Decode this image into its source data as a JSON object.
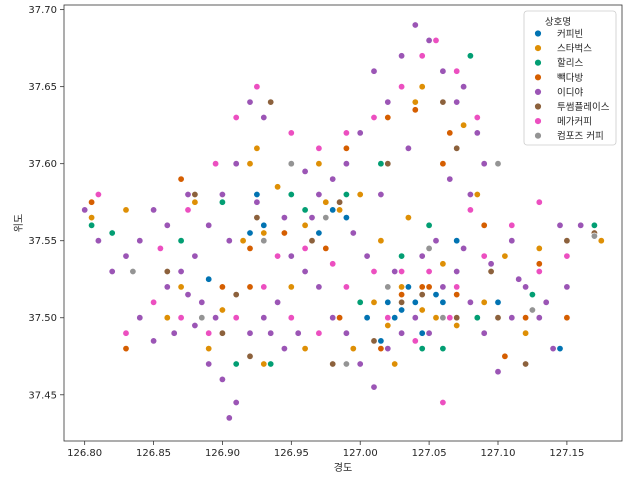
{
  "chart_data": {
    "type": "scatter",
    "xlabel": "경도",
    "ylabel": "위도",
    "xlim": [
      126.785,
      127.19
    ],
    "ylim": [
      37.42,
      37.703
    ],
    "xticks": [
      "126.80",
      "126.85",
      "126.90",
      "126.95",
      "127.00",
      "127.05",
      "127.10",
      "127.15"
    ],
    "yticks": [
      "37.45",
      "37.50",
      "37.55",
      "37.60",
      "37.65",
      "37.70"
    ],
    "grid": false,
    "legend": {
      "title": "상호명",
      "placement": "top-right"
    },
    "series": [
      {
        "name": "커피빈",
        "color": "#0173b2",
        "points": [
          [
            127.03,
            37.505
          ],
          [
            127.04,
            37.51
          ],
          [
            127.025,
            37.5
          ],
          [
            127.035,
            37.52
          ],
          [
            127.02,
            37.51
          ],
          [
            127.005,
            37.5
          ],
          [
            126.99,
            37.565
          ],
          [
            126.98,
            37.57
          ],
          [
            126.92,
            37.555
          ],
          [
            126.93,
            37.56
          ],
          [
            127.055,
            37.515
          ],
          [
            127.06,
            37.51
          ],
          [
            127.045,
            37.49
          ],
          [
            127.015,
            37.485
          ],
          [
            127.1,
            37.51
          ],
          [
            127.145,
            37.48
          ],
          [
            126.89,
            37.525
          ],
          [
            126.925,
            37.58
          ],
          [
            127.07,
            37.55
          ],
          [
            126.97,
            37.555
          ]
        ]
      },
      {
        "name": "스타벅스",
        "color": "#de8f05",
        "points": [
          [
            127.03,
            37.52
          ],
          [
            127.045,
            37.505
          ],
          [
            127.055,
            37.5
          ],
          [
            127.02,
            37.495
          ],
          [
            127.01,
            37.51
          ],
          [
            126.975,
            37.575
          ],
          [
            126.985,
            37.57
          ],
          [
            126.96,
            37.56
          ],
          [
            126.93,
            37.555
          ],
          [
            126.915,
            37.55
          ],
          [
            126.92,
            37.6
          ],
          [
            126.925,
            37.61
          ],
          [
            127.04,
            37.64
          ],
          [
            127.045,
            37.65
          ],
          [
            127.075,
            37.625
          ],
          [
            127.085,
            37.58
          ],
          [
            127.105,
            37.54
          ],
          [
            127.13,
            37.545
          ],
          [
            127.175,
            37.55
          ],
          [
            126.805,
            37.565
          ],
          [
            126.83,
            37.57
          ],
          [
            126.87,
            37.52
          ],
          [
            126.89,
            37.48
          ],
          [
            126.9,
            37.505
          ],
          [
            126.95,
            37.52
          ],
          [
            126.97,
            37.6
          ],
          [
            127.0,
            37.58
          ],
          [
            127.06,
            37.535
          ],
          [
            127.09,
            37.51
          ],
          [
            127.12,
            37.49
          ],
          [
            126.88,
            37.575
          ],
          [
            126.94,
            37.585
          ],
          [
            127.015,
            37.55
          ],
          [
            127.035,
            37.565
          ],
          [
            126.995,
            37.48
          ],
          [
            127.025,
            37.47
          ],
          [
            127.07,
            37.495
          ],
          [
            126.96,
            37.48
          ],
          [
            126.93,
            37.47
          ],
          [
            126.86,
            37.5
          ]
        ]
      },
      {
        "name": "할리스",
        "color": "#029e73",
        "points": [
          [
            127.08,
            37.67
          ],
          [
            126.805,
            37.56
          ],
          [
            126.82,
            37.555
          ],
          [
            127.17,
            37.56
          ],
          [
            127.045,
            37.48
          ],
          [
            126.98,
            37.5
          ],
          [
            126.95,
            37.58
          ],
          [
            126.96,
            37.57
          ],
          [
            126.935,
            37.47
          ],
          [
            126.91,
            37.47
          ],
          [
            127.05,
            37.56
          ],
          [
            127.03,
            37.54
          ],
          [
            127.06,
            37.48
          ],
          [
            126.9,
            37.575
          ],
          [
            127.0,
            37.51
          ],
          [
            127.125,
            37.515
          ],
          [
            127.085,
            37.5
          ],
          [
            126.87,
            37.55
          ],
          [
            126.99,
            37.58
          ],
          [
            127.015,
            37.6
          ]
        ]
      },
      {
        "name": "빽다방",
        "color": "#d55e00",
        "points": [
          [
            126.805,
            37.575
          ],
          [
            126.83,
            37.48
          ],
          [
            126.9,
            37.52
          ],
          [
            126.92,
            37.52
          ],
          [
            127.03,
            37.515
          ],
          [
            127.05,
            37.52
          ],
          [
            127.07,
            37.515
          ],
          [
            127.06,
            37.6
          ],
          [
            127.04,
            37.635
          ],
          [
            127.045,
            37.52
          ],
          [
            127.12,
            37.5
          ],
          [
            127.15,
            37.5
          ],
          [
            127.13,
            37.535
          ],
          [
            127.105,
            37.475
          ],
          [
            127.09,
            37.56
          ],
          [
            126.975,
            37.545
          ],
          [
            126.985,
            37.5
          ],
          [
            126.92,
            37.545
          ],
          [
            126.945,
            37.555
          ],
          [
            126.87,
            37.59
          ],
          [
            127.065,
            37.62
          ],
          [
            127.02,
            37.63
          ],
          [
            126.99,
            37.61
          ],
          [
            127.015,
            37.48
          ]
        ]
      },
      {
        "name": "이디야",
        "color": "#9b55b5",
        "points": [
          [
            126.8,
            37.57
          ],
          [
            126.81,
            37.55
          ],
          [
            126.82,
            37.53
          ],
          [
            126.84,
            37.5
          ],
          [
            126.85,
            37.485
          ],
          [
            126.86,
            37.52
          ],
          [
            126.875,
            37.515
          ],
          [
            126.88,
            37.495
          ],
          [
            126.89,
            37.47
          ],
          [
            126.9,
            37.46
          ],
          [
            126.91,
            37.445
          ],
          [
            126.905,
            37.435
          ],
          [
            126.92,
            37.49
          ],
          [
            126.93,
            37.5
          ],
          [
            126.94,
            37.51
          ],
          [
            126.95,
            37.54
          ],
          [
            126.96,
            37.53
          ],
          [
            126.97,
            37.52
          ],
          [
            126.98,
            37.5
          ],
          [
            126.99,
            37.49
          ],
          [
            127.0,
            37.47
          ],
          [
            127.01,
            37.455
          ],
          [
            127.02,
            37.48
          ],
          [
            127.03,
            37.49
          ],
          [
            127.04,
            37.5
          ],
          [
            127.05,
            37.49
          ],
          [
            127.06,
            37.52
          ],
          [
            127.07,
            37.53
          ],
          [
            127.08,
            37.51
          ],
          [
            127.09,
            37.49
          ],
          [
            127.1,
            37.465
          ],
          [
            127.11,
            37.5
          ],
          [
            127.12,
            37.52
          ],
          [
            127.13,
            37.5
          ],
          [
            127.14,
            37.48
          ],
          [
            127.15,
            37.52
          ],
          [
            127.16,
            37.56
          ],
          [
            127.145,
            37.56
          ],
          [
            127.11,
            37.55
          ],
          [
            127.09,
            37.6
          ],
          [
            127.08,
            37.58
          ],
          [
            127.07,
            37.64
          ],
          [
            127.06,
            37.66
          ],
          [
            127.05,
            37.68
          ],
          [
            127.04,
            37.69
          ],
          [
            127.03,
            37.67
          ],
          [
            127.02,
            37.64
          ],
          [
            127.01,
            37.66
          ],
          [
            127.0,
            37.62
          ],
          [
            126.99,
            37.6
          ],
          [
            126.98,
            37.59
          ],
          [
            126.97,
            37.58
          ],
          [
            126.96,
            37.595
          ],
          [
            126.95,
            37.6
          ],
          [
            126.93,
            37.63
          ],
          [
            126.92,
            37.64
          ],
          [
            126.91,
            37.6
          ],
          [
            126.9,
            37.58
          ],
          [
            126.89,
            37.56
          ],
          [
            126.88,
            37.54
          ],
          [
            126.87,
            37.53
          ],
          [
            126.86,
            37.56
          ],
          [
            126.85,
            37.57
          ],
          [
            126.84,
            37.55
          ],
          [
            126.83,
            37.54
          ],
          [
            126.935,
            37.64
          ],
          [
            127.075,
            37.65
          ],
          [
            127.085,
            37.62
          ],
          [
            127.065,
            37.59
          ],
          [
            127.035,
            37.61
          ],
          [
            127.015,
            37.58
          ],
          [
            126.995,
            37.555
          ],
          [
            126.965,
            37.565
          ],
          [
            126.945,
            37.565
          ],
          [
            126.925,
            37.575
          ],
          [
            126.905,
            37.55
          ],
          [
            126.875,
            37.58
          ],
          [
            127.005,
            37.54
          ],
          [
            127.025,
            37.53
          ],
          [
            127.045,
            37.54
          ],
          [
            127.055,
            37.55
          ],
          [
            127.075,
            37.545
          ],
          [
            127.095,
            37.535
          ],
          [
            127.115,
            37.525
          ],
          [
            127.135,
            37.51
          ],
          [
            126.955,
            37.49
          ],
          [
            126.945,
            37.48
          ],
          [
            126.935,
            37.49
          ],
          [
            126.895,
            37.5
          ],
          [
            126.885,
            37.51
          ],
          [
            126.865,
            37.49
          ]
        ]
      },
      {
        "name": "투썸플레이스",
        "color": "#8c613c",
        "points": [
          [
            126.935,
            37.64
          ],
          [
            126.88,
            37.58
          ],
          [
            126.86,
            37.53
          ],
          [
            126.91,
            37.515
          ],
          [
            127.03,
            37.51
          ],
          [
            127.045,
            37.515
          ],
          [
            127.07,
            37.5
          ],
          [
            127.095,
            37.53
          ],
          [
            127.15,
            37.55
          ],
          [
            127.17,
            37.555
          ],
          [
            127.07,
            37.61
          ],
          [
            127.06,
            37.64
          ],
          [
            127.02,
            37.6
          ],
          [
            126.985,
            37.575
          ],
          [
            126.965,
            37.55
          ],
          [
            126.925,
            37.565
          ],
          [
            126.9,
            37.49
          ],
          [
            126.92,
            37.475
          ],
          [
            126.98,
            37.47
          ],
          [
            127.01,
            37.485
          ],
          [
            127.1,
            37.5
          ],
          [
            127.12,
            37.47
          ]
        ]
      },
      {
        "name": "메가커피",
        "color": "#ec4fc0",
        "points": [
          [
            126.81,
            37.58
          ],
          [
            126.83,
            37.49
          ],
          [
            126.85,
            37.51
          ],
          [
            126.87,
            37.5
          ],
          [
            126.89,
            37.49
          ],
          [
            126.91,
            37.5
          ],
          [
            126.93,
            37.52
          ],
          [
            126.95,
            37.5
          ],
          [
            126.97,
            37.49
          ],
          [
            126.99,
            37.52
          ],
          [
            127.01,
            37.53
          ],
          [
            127.03,
            37.53
          ],
          [
            127.05,
            37.53
          ],
          [
            127.06,
            37.445
          ],
          [
            127.07,
            37.52
          ],
          [
            127.09,
            37.54
          ],
          [
            127.11,
            37.56
          ],
          [
            127.13,
            37.53
          ],
          [
            127.15,
            37.54
          ],
          [
            127.13,
            37.575
          ],
          [
            127.085,
            37.63
          ],
          [
            127.07,
            37.66
          ],
          [
            127.055,
            37.68
          ],
          [
            127.045,
            37.67
          ],
          [
            127.03,
            37.65
          ],
          [
            127.01,
            37.63
          ],
          [
            126.99,
            37.62
          ],
          [
            126.97,
            37.61
          ],
          [
            126.95,
            37.62
          ],
          [
            126.925,
            37.65
          ],
          [
            126.91,
            37.63
          ],
          [
            126.895,
            37.6
          ],
          [
            126.875,
            37.57
          ],
          [
            126.855,
            37.545
          ],
          [
            126.94,
            37.54
          ],
          [
            126.96,
            37.545
          ],
          [
            126.98,
            37.535
          ],
          [
            127.02,
            37.5
          ],
          [
            127.04,
            37.485
          ],
          [
            127.065,
            37.5
          ],
          [
            127.08,
            37.57
          ]
        ]
      },
      {
        "name": "컴포즈 커피",
        "color": "#949494",
        "points": [
          [
            126.95,
            37.6
          ],
          [
            126.93,
            37.55
          ],
          [
            126.975,
            37.565
          ],
          [
            127.05,
            37.545
          ],
          [
            127.1,
            37.6
          ],
          [
            127.17,
            37.553
          ],
          [
            126.835,
            37.53
          ],
          [
            126.885,
            37.5
          ],
          [
            127.02,
            37.52
          ],
          [
            127.06,
            37.5
          ],
          [
            126.99,
            37.47
          ],
          [
            127.125,
            37.505
          ]
        ]
      }
    ]
  }
}
